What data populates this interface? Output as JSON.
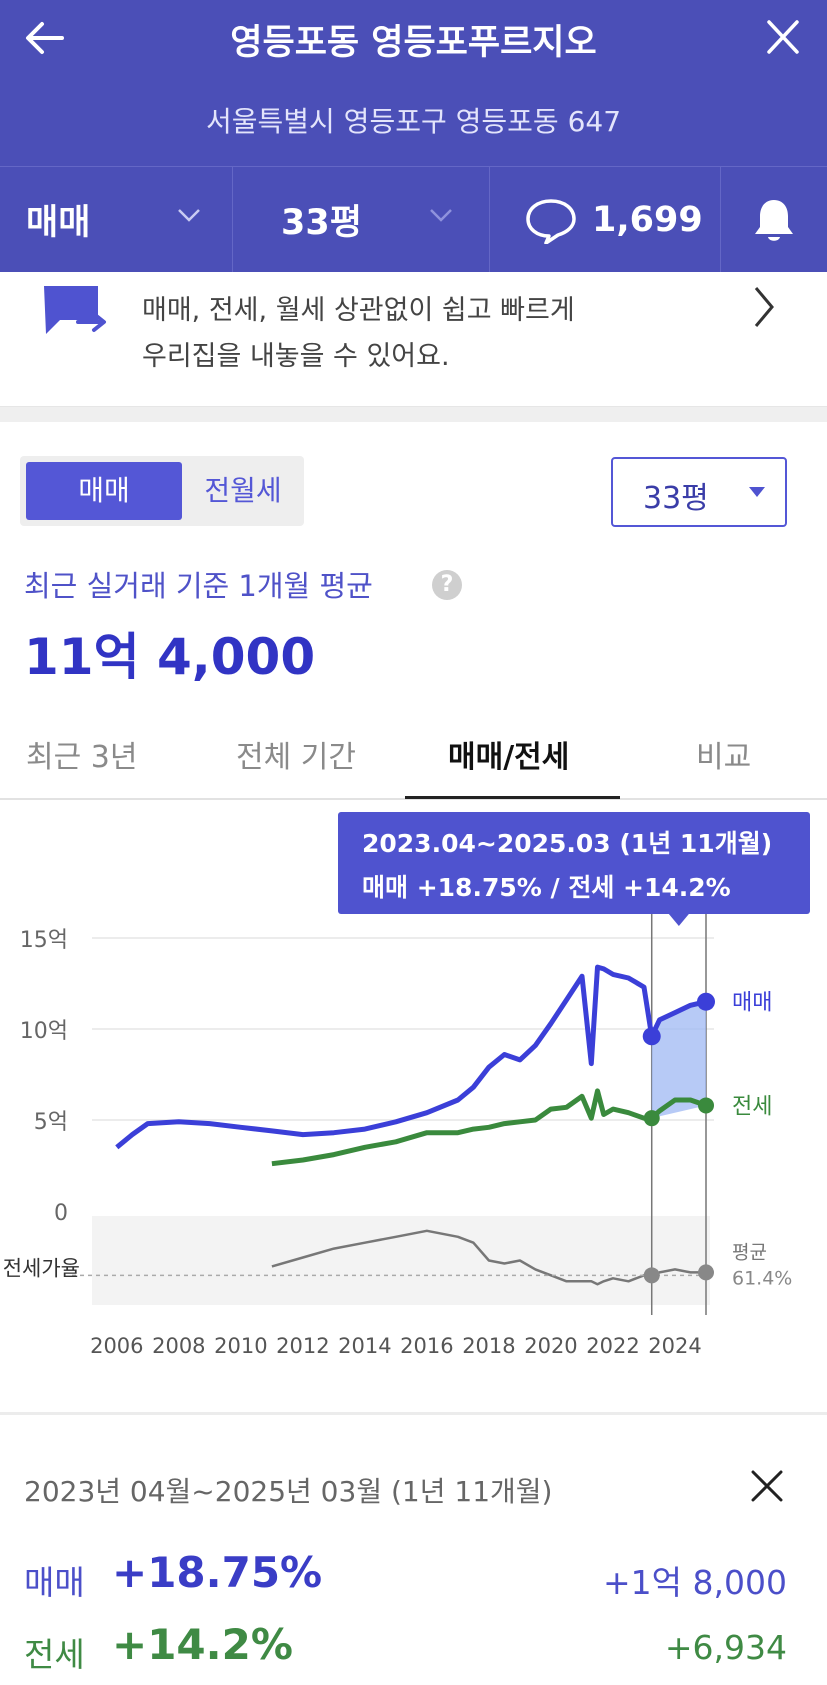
{
  "header": {
    "title": "영등포동 영등포푸르지오",
    "address": "서울특별시 영등포구 영등포동 647",
    "trade_type": "매매",
    "size": "33평",
    "comment_count": "1,699"
  },
  "banner": {
    "line1": "매매, 전세, 월세 상관없이 쉽고 빠르게",
    "line2": "우리집을 내놓을 수 있어요."
  },
  "toggle": {
    "sale": "매매",
    "lease": "전월세"
  },
  "size_select": "33평",
  "recent_label": "최근 실거래 기준 1개월 평균",
  "recent_price": "11억 4,000",
  "tabs": [
    "최근 3년",
    "전체 기간",
    "매매/전세",
    "비교"
  ],
  "tooltip": {
    "line1": "2023.04~2025.03 (1년 11개월)",
    "line2": "매매 +18.75%  /  전세 +14.2%"
  },
  "ratio_label": "전세가율",
  "avg_label": "평균",
  "avg_value": "61.4%",
  "chart_data": {
    "type": "line",
    "title": "",
    "y_ticks": [
      "15억",
      "10억",
      "5억",
      "0"
    ],
    "ylim": [
      0,
      15
    ],
    "x_ticks": [
      "2006",
      "2008",
      "2010",
      "2012",
      "2014",
      "2016",
      "2018",
      "2020",
      "2022",
      "2024"
    ],
    "x": [
      2006.0,
      2006.5,
      2007.0,
      2008.0,
      2009.0,
      2010.0,
      2011.0,
      2012.0,
      2013.0,
      2014.0,
      2015.0,
      2016.0,
      2017.0,
      2017.5,
      2018.0,
      2018.5,
      2019.0,
      2019.5,
      2020.0,
      2020.5,
      2021.0,
      2021.3,
      2021.5,
      2021.7,
      2022.0,
      2022.5,
      2023.0,
      2023.25,
      2023.5,
      2024.0,
      2024.5,
      2025.0
    ],
    "series": [
      {
        "name": "매매",
        "color": "#3b3fd8",
        "values": [
          3.5,
          4.2,
          4.8,
          4.9,
          4.8,
          4.6,
          4.4,
          4.2,
          4.3,
          4.5,
          4.9,
          5.4,
          6.1,
          6.8,
          7.9,
          8.6,
          8.3,
          9.1,
          10.3,
          11.6,
          12.9,
          8.1,
          13.4,
          13.3,
          13.0,
          12.8,
          12.3,
          9.6,
          10.5,
          10.9,
          11.3,
          11.5
        ]
      },
      {
        "name": "전세",
        "color": "#3a8a3d",
        "values": [
          null,
          null,
          null,
          null,
          null,
          null,
          2.6,
          2.8,
          3.1,
          3.5,
          3.8,
          4.3,
          4.3,
          4.5,
          4.6,
          4.8,
          4.9,
          5.0,
          5.6,
          5.7,
          6.3,
          5.1,
          6.6,
          5.3,
          5.6,
          5.4,
          5.1,
          5.1,
          5.5,
          6.1,
          6.1,
          5.8
        ]
      },
      {
        "name": "전세가율",
        "color": "#777777",
        "values": [
          null,
          null,
          null,
          null,
          null,
          null,
          58,
          61,
          64,
          66,
          68,
          70,
          68,
          66,
          60,
          59,
          60,
          57,
          55,
          53,
          53,
          53,
          52,
          53,
          54,
          53,
          55,
          55,
          56,
          57,
          56,
          56
        ]
      }
    ],
    "selection": {
      "start": 2023.25,
      "end": 2025.0
    }
  },
  "summary": {
    "period": "2023년 04월~2025년 03월 (1년 11개월)",
    "rows": [
      {
        "name": "매매",
        "pct": "+18.75%",
        "amount": "+1억 8,000"
      },
      {
        "name": "전세",
        "pct": "+14.2%",
        "amount": "+6,934"
      }
    ]
  }
}
